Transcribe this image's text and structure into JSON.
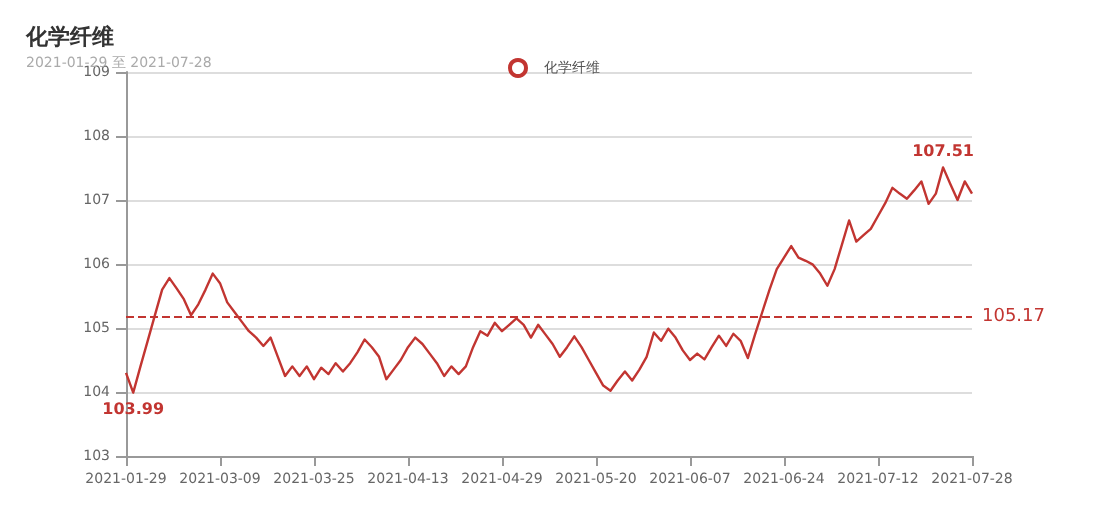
{
  "chart_data": {
    "type": "line",
    "title": "化学纤维",
    "subtitle": "2021-01-29 至 2021-07-28",
    "categories": [
      "2021-01-29",
      null,
      null,
      null,
      null,
      null,
      null,
      null,
      null,
      null,
      null,
      null,
      null,
      "2021-03-09",
      null,
      null,
      null,
      null,
      null,
      null,
      null,
      null,
      null,
      null,
      null,
      null,
      "2021-03-25",
      null,
      null,
      null,
      null,
      null,
      null,
      null,
      null,
      null,
      null,
      null,
      null,
      "2021-04-13",
      null,
      null,
      null,
      null,
      null,
      null,
      null,
      null,
      null,
      null,
      null,
      null,
      "2021-04-29",
      null,
      null,
      null,
      null,
      null,
      null,
      null,
      null,
      null,
      null,
      null,
      null,
      "2021-05-20",
      null,
      null,
      null,
      null,
      null,
      null,
      null,
      null,
      null,
      null,
      null,
      null,
      "2021-06-07",
      null,
      null,
      null,
      null,
      null,
      null,
      null,
      null,
      null,
      null,
      null,
      null,
      "2021-06-24",
      null,
      null,
      null,
      null,
      null,
      null,
      null,
      null,
      null,
      null,
      null,
      null,
      "2021-07-12",
      null,
      null,
      null,
      null,
      null,
      null,
      null,
      null,
      null,
      null,
      null,
      null,
      "2021-07-28"
    ],
    "series": [
      {
        "name": "化学纤维",
        "color": "#c23531",
        "values": [
          104.3,
          103.99,
          104.4,
          104.8,
          105.2,
          105.6,
          105.78,
          105.62,
          105.45,
          105.2,
          105.37,
          105.6,
          105.85,
          105.7,
          105.4,
          105.25,
          105.1,
          104.95,
          104.85,
          104.72,
          104.85,
          104.55,
          104.25,
          104.4,
          104.25,
          104.4,
          104.2,
          104.38,
          104.28,
          104.45,
          104.32,
          104.45,
          104.62,
          104.82,
          104.7,
          104.55,
          104.2,
          104.35,
          104.5,
          104.7,
          104.85,
          104.75,
          104.6,
          104.45,
          104.25,
          104.4,
          104.28,
          104.4,
          104.7,
          104.95,
          104.88,
          105.08,
          104.95,
          105.05,
          105.15,
          105.05,
          104.85,
          105.05,
          104.9,
          104.75,
          104.55,
          104.7,
          104.87,
          104.7,
          104.5,
          104.3,
          104.1,
          104.02,
          104.18,
          104.32,
          104.18,
          104.35,
          104.55,
          104.93,
          104.8,
          104.99,
          104.85,
          104.65,
          104.5,
          104.6,
          104.51,
          104.7,
          104.88,
          104.72,
          104.91,
          104.8,
          104.53,
          104.9,
          105.25,
          105.6,
          105.92,
          106.1,
          106.28,
          106.1,
          106.05,
          105.99,
          105.85,
          105.66,
          105.92,
          106.3,
          106.68,
          106.35,
          106.45,
          106.55,
          106.75,
          106.95,
          107.19,
          107.1,
          107.02,
          107.15,
          107.29,
          106.94,
          107.1,
          107.51,
          107.25,
          107.0,
          107.29,
          107.1
        ]
      }
    ],
    "ylim": [
      103,
      109
    ],
    "yticks": [
      103,
      104,
      105,
      106,
      107,
      108,
      109
    ],
    "grid": "y",
    "legend": "top",
    "ref_lines": [
      {
        "axis": "y",
        "value": 105.17,
        "label": "105.17",
        "color": "#c23531",
        "line_style": "dashed"
      }
    ],
    "annotations": [
      {
        "text": "107.51",
        "y": 107.51
      },
      {
        "text": "103.99",
        "y": 103.99
      }
    ]
  }
}
